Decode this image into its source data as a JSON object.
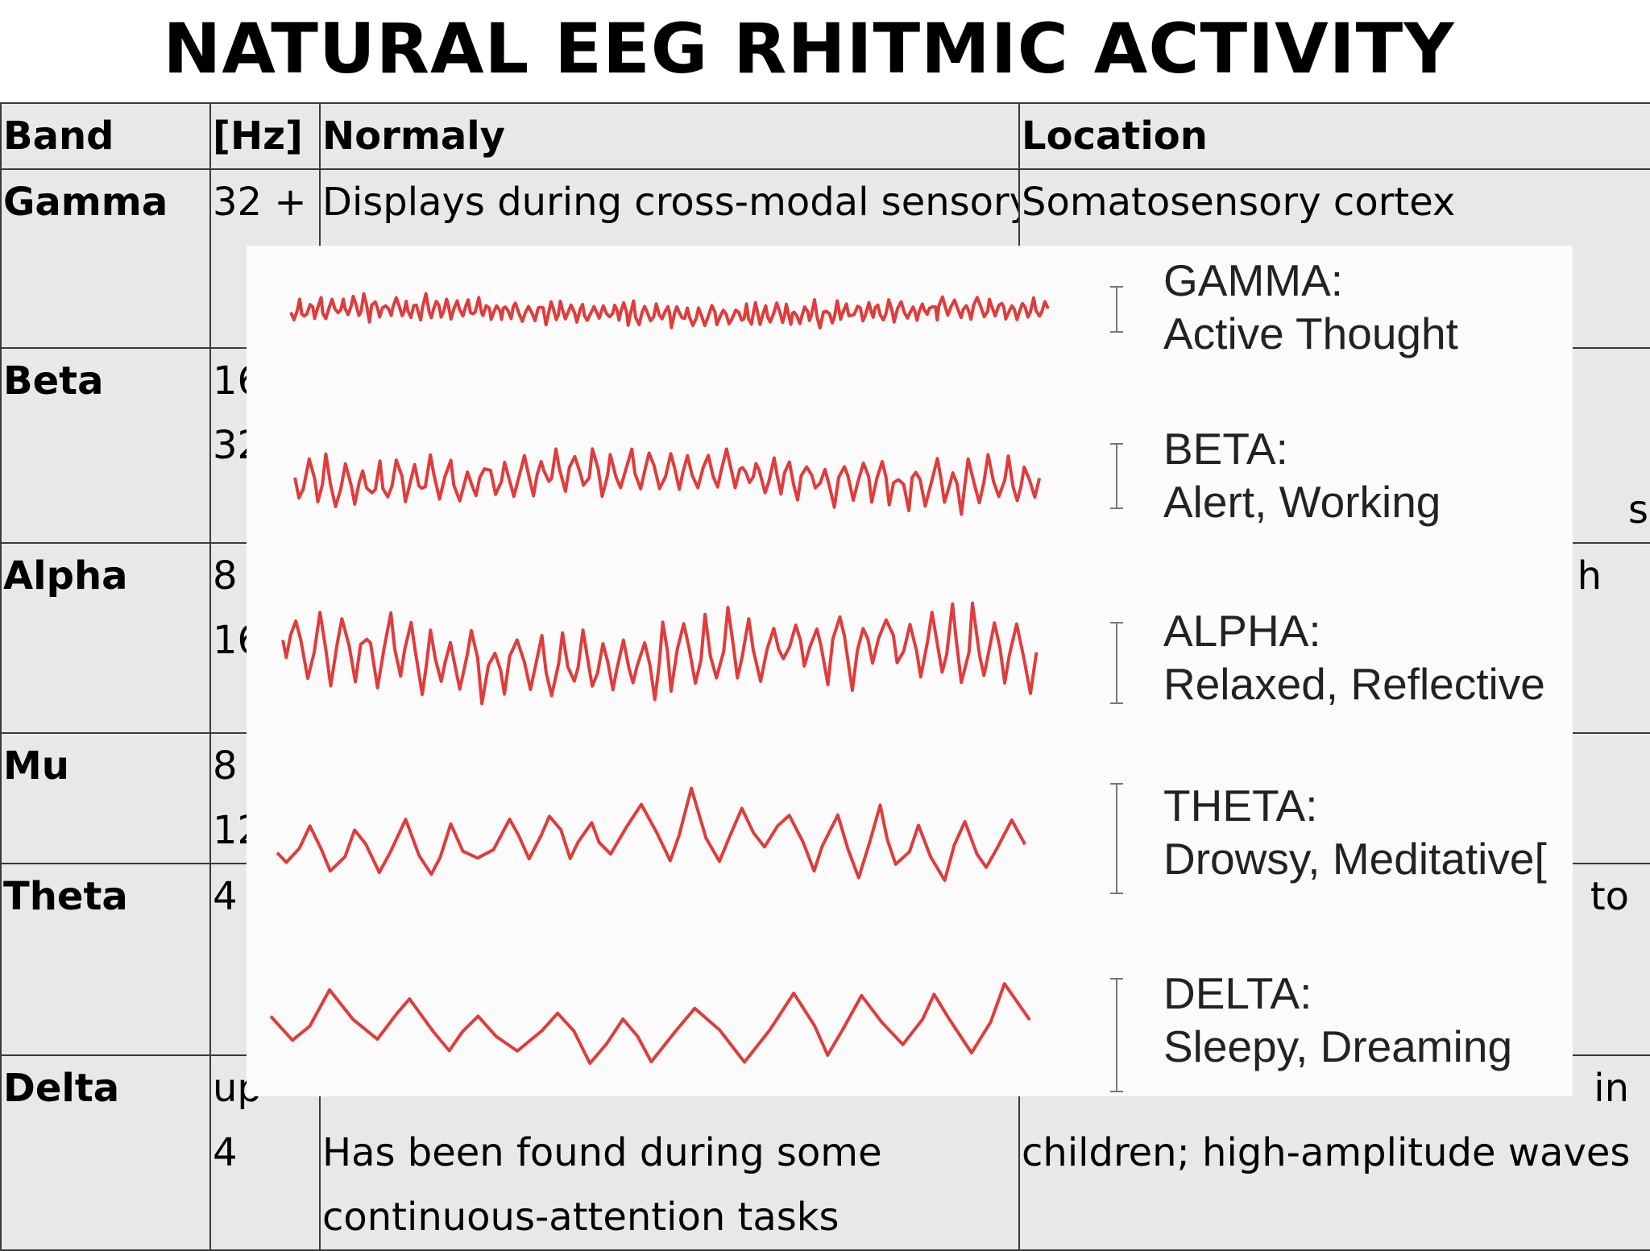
{
  "title": "NATURAL EEG RHITMIC ACTIVITY",
  "table": {
    "headers": [
      "Band",
      "[Hz]",
      "Normaly",
      "Location"
    ],
    "rows": [
      {
        "band": "Gamma",
        "hz": [
          "32 +"
        ],
        "normal": [
          "Displays during cross-modal sensory"
        ],
        "location": [
          "Somatosensory cortex"
        ]
      },
      {
        "band": "Beta",
        "hz": [
          "16",
          "32"
        ],
        "normal": [],
        "location": [
          "",
          "s"
        ]
      },
      {
        "band": "Alpha",
        "hz": [
          "8",
          "16"
        ],
        "normal": [],
        "location": [
          "h"
        ]
      },
      {
        "band": "Mu",
        "hz": [
          "8",
          "12"
        ],
        "normal": [],
        "location": []
      },
      {
        "band": "Theta",
        "hz": [
          "4"
        ],
        "normal": [],
        "location": [
          "to"
        ]
      },
      {
        "band": "Delta",
        "hz": [
          "up",
          "4"
        ],
        "normal": [
          "",
          "Has been found during some",
          "continuous-attention tasks"
        ],
        "location": [
          "in",
          "children; high-amplitude waves"
        ]
      }
    ]
  },
  "overlay": {
    "waves": [
      {
        "name": "GAMMA:",
        "state": "Active Thought",
        "color": "#e03c3c"
      },
      {
        "name": "BETA:",
        "state": "Alert, Working",
        "color": "#e03c3c"
      },
      {
        "name": "ALPHA:",
        "state": "Relaxed, Reflective",
        "color": "#e03c3c"
      },
      {
        "name": "THETA:",
        "state": "Drowsy, Meditative[",
        "color": "#e03c3c"
      },
      {
        "name": "DELTA:",
        "state": "Sleepy, Dreaming",
        "color": "#e03c3c"
      }
    ]
  }
}
